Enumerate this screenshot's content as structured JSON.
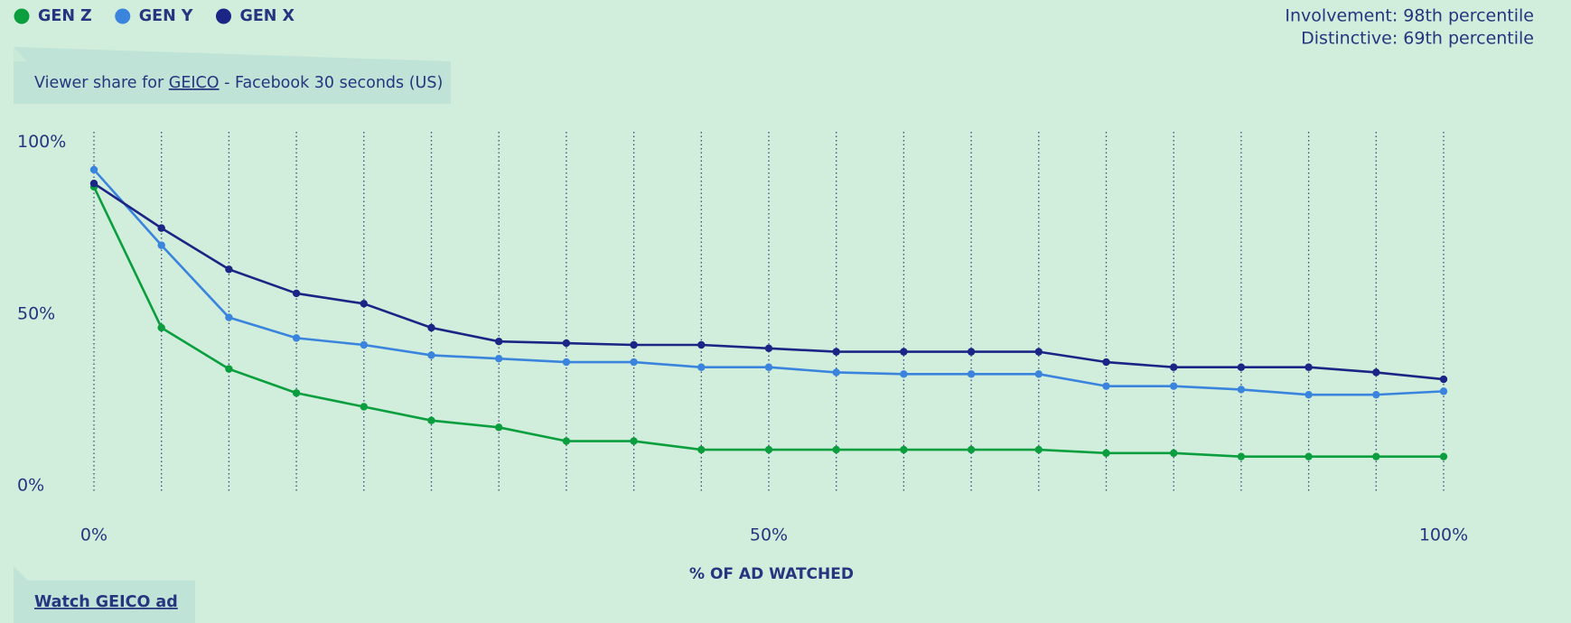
{
  "chart_data": {
    "type": "line",
    "legend_position": "top-left",
    "stats": [
      "Involvement: 98th percentile",
      "Distinctive: 69th percentile"
    ],
    "subtitle_prefix": "Viewer share for",
    "subtitle_link": "GEICO",
    "subtitle_suffix": "- Facebook 30 seconds (US)",
    "x_label": "% OF AD WATCHED",
    "button": "Watch GEICO ad",
    "x": [
      0,
      5,
      10,
      15,
      20,
      25,
      30,
      35,
      40,
      45,
      50,
      55,
      60,
      65,
      70,
      75,
      80,
      85,
      90,
      95,
      100
    ],
    "xlim": [
      0,
      100
    ],
    "xticks": [
      {
        "value": 0,
        "label": "0%"
      },
      {
        "value": 50,
        "label": "50%"
      },
      {
        "value": 100,
        "label": "100%"
      }
    ],
    "ylim": [
      0,
      100
    ],
    "yticks": [
      {
        "value": 0,
        "label": "0%"
      },
      {
        "value": 50,
        "label": "50%"
      },
      {
        "value": 100,
        "label": "100%"
      }
    ],
    "series": [
      {
        "name": "GEN Z",
        "color": "#0a9e3f",
        "values": [
          87,
          46,
          34,
          27,
          23,
          19,
          17,
          13,
          13,
          10.5,
          10.5,
          10.5,
          10.5,
          10.5,
          10.5,
          9.5,
          9.5,
          8.5,
          8.5,
          8.5,
          8.5
        ]
      },
      {
        "name": "GEN Y",
        "color": "#3a84de",
        "values": [
          92,
          70,
          49,
          43,
          41,
          38,
          37,
          36,
          36,
          34.5,
          34.5,
          33,
          32.5,
          32.5,
          32.5,
          29,
          29,
          28,
          26.5,
          26.5,
          27.5
        ]
      },
      {
        "name": "GEN X",
        "color": "#1b2585",
        "values": [
          88,
          75,
          63,
          56,
          53,
          46,
          42,
          41.5,
          41,
          41,
          40,
          39,
          39,
          39,
          39,
          36,
          34.5,
          34.5,
          34.5,
          33,
          31
        ]
      }
    ]
  }
}
